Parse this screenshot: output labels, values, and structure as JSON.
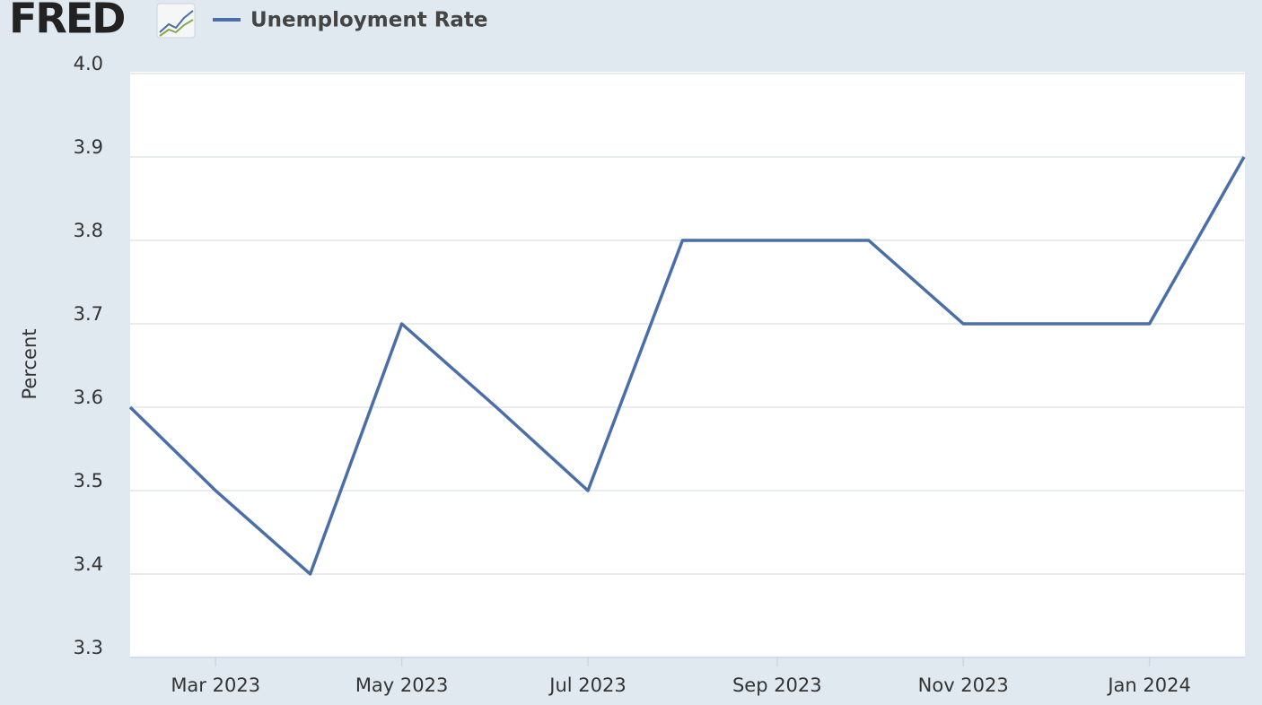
{
  "chart_data": {
    "type": "line",
    "logo": "FRED",
    "ylabel": "Percent",
    "x": [
      "2023-02",
      "2023-03",
      "2023-04",
      "2023-05",
      "2023-06",
      "2023-07",
      "2023-08",
      "2023-09",
      "2023-10",
      "2023-11",
      "2023-12",
      "2024-01",
      "2024-02"
    ],
    "series": [
      {
        "name": "Unemployment Rate",
        "color": "#4a6ea8",
        "values": [
          3.6,
          3.5,
          3.4,
          3.7,
          3.6,
          3.5,
          3.8,
          3.8,
          3.8,
          3.7,
          3.7,
          3.7,
          3.9
        ]
      }
    ],
    "xlim": [
      "2023-02",
      "2024-02"
    ],
    "xticks": [
      {
        "value": "2023-03",
        "label": "Mar 2023"
      },
      {
        "value": "2023-05",
        "label": "May 2023"
      },
      {
        "value": "2023-07",
        "label": "Jul 2023"
      },
      {
        "value": "2023-09",
        "label": "Sep 2023"
      },
      {
        "value": "2023-11",
        "label": "Nov 2023"
      },
      {
        "value": "2024-01",
        "label": "Jan 2024"
      }
    ],
    "ylim": [
      3.3,
      4.0
    ],
    "yticks": [
      3.3,
      3.4,
      3.5,
      3.6,
      3.7,
      3.8,
      3.9,
      {
        "value": 4.0,
        "label": "4.0"
      }
    ],
    "grid": true
  }
}
